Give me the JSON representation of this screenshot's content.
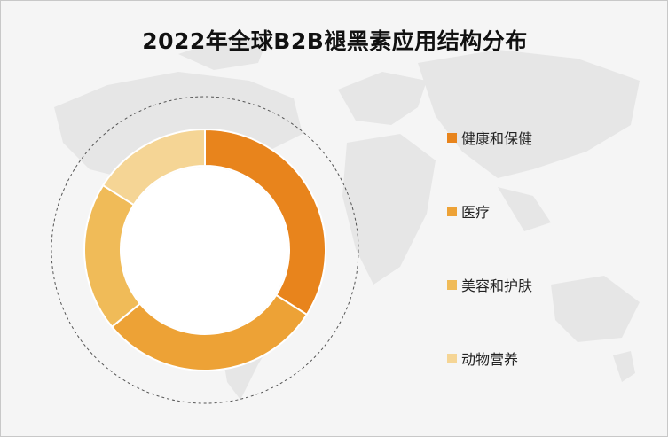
{
  "chart_data": {
    "type": "pie",
    "title": "2022年全球B2B褪黑素应用结构分布",
    "categories": [
      "健康和保健",
      "医疗",
      "美容和护肤",
      "动物营养"
    ],
    "values": [
      34,
      30,
      20,
      16
    ],
    "unit": "%",
    "colors": [
      "#e8841c",
      "#eda236",
      "#f0bb58",
      "#f5d595"
    ],
    "legend_position": "right"
  }
}
